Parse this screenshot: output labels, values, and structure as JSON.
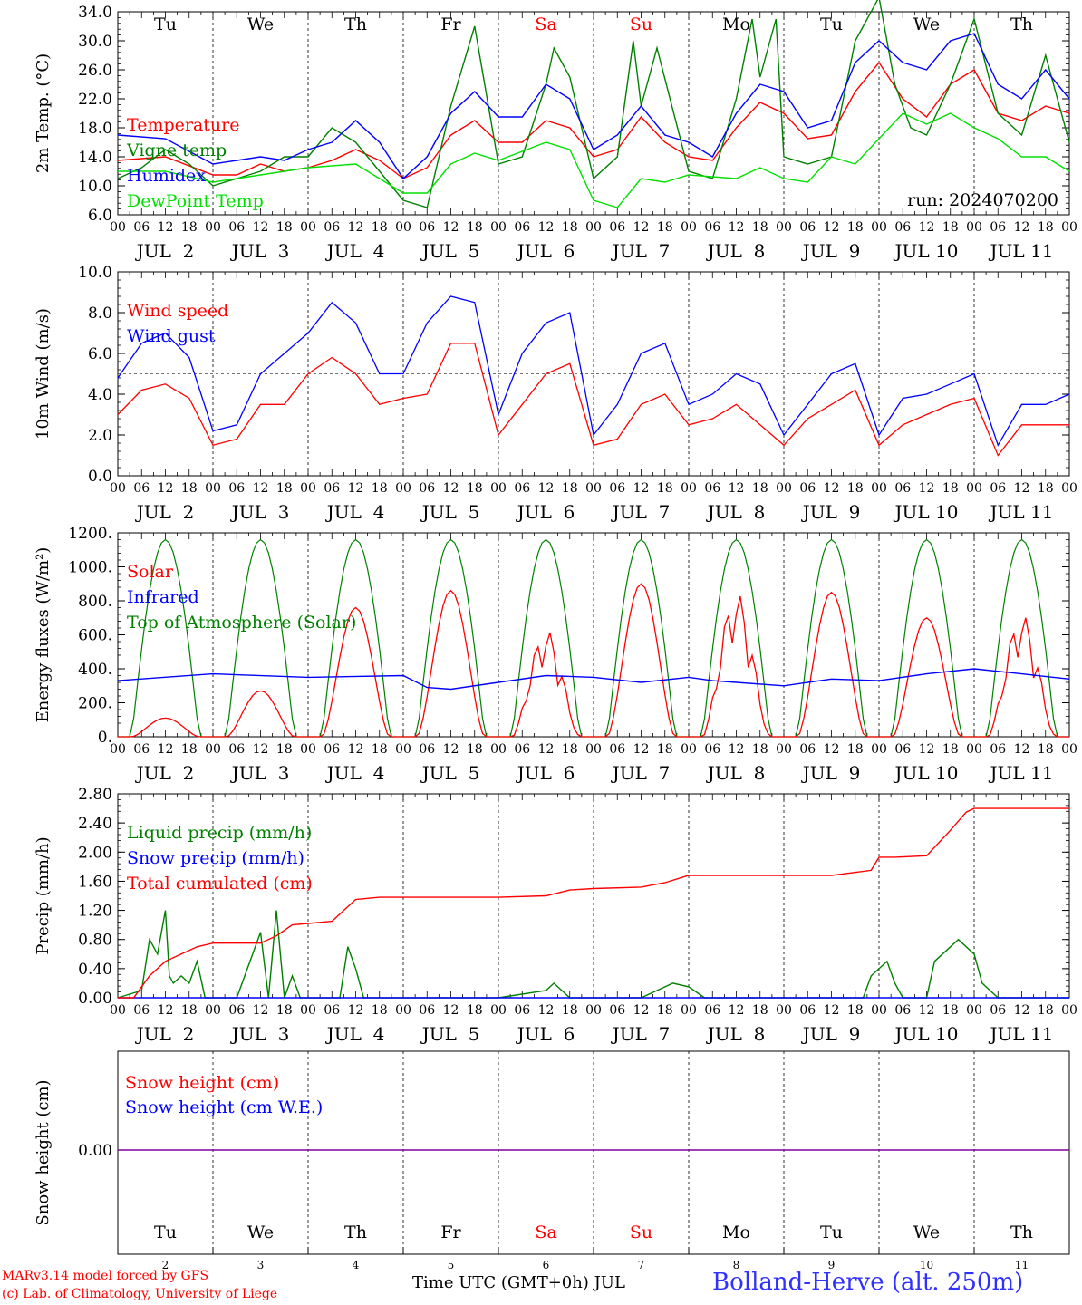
{
  "meta": {
    "run": "run: 2024070200",
    "credit_line1": "MARv3.14 model forced by GFS",
    "credit_line2": "(c) Lab. of Climatology, University of Liege",
    "xaxis_title": "Time UTC (GMT+0h) JUL",
    "station": "Bolland-Herve (alt. 250m)"
  },
  "colors": {
    "red": "#ff0000",
    "blue": "#0000ff",
    "green": "#008000",
    "light_green": "#00e000",
    "purple": "#8000a0"
  },
  "days": {
    "weekday_labels": [
      "Tu",
      "We",
      "Th",
      "Fr",
      "Sa",
      "Su",
      "Mo",
      "Tu",
      "We",
      "Th"
    ],
    "weekend_color": [
      "#000000",
      "#000000",
      "#000000",
      "#000000",
      "#ff0000",
      "#ff0000",
      "#000000",
      "#000000",
      "#000000",
      "#000000"
    ],
    "date_labels": [
      "JUL  2",
      "JUL  3",
      "JUL  4",
      "JUL  5",
      "JUL  6",
      "JUL  7",
      "JUL  8",
      "JUL  9",
      "JUL 10",
      "JUL 11"
    ],
    "day_numbers": [
      "2",
      "3",
      "4",
      "5",
      "6",
      "7",
      "8",
      "9",
      "10",
      "11"
    ],
    "hour_ticks": [
      "00",
      "06",
      "12",
      "18"
    ]
  },
  "chart_data": [
    {
      "type": "line",
      "ylabel": "2m Temp. (°C)",
      "ylim": [
        6,
        34
      ],
      "yticks": [
        "6.0",
        "10.0",
        "14.0",
        "18.0",
        "22.0",
        "26.0",
        "30.0",
        "34.0"
      ],
      "x_unit": "hours since JUL 2 00 UTC",
      "series": [
        {
          "name": "Temperature",
          "color": "#ff0000",
          "x": [
            0,
            12,
            24,
            30,
            36,
            42,
            48,
            54,
            60,
            66,
            72,
            78,
            84,
            90,
            96,
            102,
            108,
            114,
            120,
            126,
            132,
            138,
            144,
            150,
            156,
            162,
            168,
            174,
            180,
            186,
            192,
            198,
            204,
            210,
            216,
            222,
            228,
            234,
            240
          ],
          "values": [
            13.5,
            14,
            11.5,
            11.5,
            13,
            12,
            12.5,
            13.5,
            15,
            13.5,
            11,
            12.5,
            17,
            19,
            16,
            16,
            19,
            18,
            14,
            15,
            19.5,
            16,
            14,
            13.5,
            18,
            21.5,
            20,
            16.5,
            17,
            23,
            27,
            22,
            19.5,
            24,
            26,
            20,
            19,
            21,
            20
          ]
        },
        {
          "name": "Vigne temp",
          "color": "#008000",
          "x": [
            0,
            6,
            12,
            18,
            24,
            30,
            36,
            42,
            48,
            54,
            60,
            66,
            72,
            78,
            84,
            90,
            96,
            102,
            108,
            110,
            114,
            120,
            126,
            130,
            132,
            136,
            144,
            150,
            156,
            160,
            162,
            166,
            168,
            174,
            180,
            186,
            192,
            196,
            200,
            204,
            210,
            216,
            222,
            228,
            234,
            240
          ],
          "values": [
            11,
            12.5,
            15,
            13,
            10,
            11,
            12,
            14,
            14,
            18,
            16,
            12,
            8,
            7,
            21,
            32,
            13,
            14,
            24,
            29,
            25,
            11,
            14,
            30,
            21,
            29,
            12,
            11,
            22,
            33,
            25,
            33,
            14,
            13,
            14,
            30,
            36,
            24,
            18,
            17,
            24,
            33,
            20,
            17,
            28,
            16
          ]
        },
        {
          "name": "Humidex",
          "color": "#0000ff",
          "x": [
            0,
            12,
            24,
            30,
            36,
            42,
            48,
            54,
            60,
            66,
            72,
            78,
            84,
            90,
            96,
            102,
            108,
            114,
            120,
            126,
            132,
            138,
            144,
            150,
            156,
            162,
            168,
            174,
            180,
            186,
            192,
            198,
            204,
            210,
            216,
            222,
            228,
            234,
            240
          ],
          "values": [
            17,
            16.5,
            13,
            13.5,
            14,
            13.5,
            15,
            16,
            19,
            16,
            11,
            14,
            20,
            23,
            19.5,
            19.5,
            24,
            22,
            15,
            17,
            21,
            17,
            16,
            14,
            20,
            24,
            23,
            18,
            19,
            27,
            30,
            27,
            26,
            30,
            31,
            24,
            22,
            26,
            22
          ]
        },
        {
          "name": "DewPoint Temp",
          "color": "#00e000",
          "x": [
            0,
            12,
            24,
            36,
            48,
            60,
            66,
            72,
            78,
            84,
            90,
            96,
            108,
            114,
            120,
            126,
            132,
            138,
            144,
            156,
            162,
            168,
            174,
            180,
            186,
            192,
            198,
            204,
            210,
            216,
            222,
            228,
            234,
            240
          ],
          "values": [
            12,
            12,
            10.5,
            11.5,
            12.5,
            13,
            11,
            9,
            9,
            13,
            14.5,
            13.5,
            16,
            15,
            8,
            7,
            11,
            10.5,
            11.5,
            11,
            12.5,
            11,
            10.5,
            14,
            13,
            16.5,
            20,
            18.5,
            20,
            18,
            16.5,
            14,
            14,
            12
          ]
        }
      ]
    },
    {
      "type": "line",
      "ylabel": "10m Wind (m/s)",
      "ylim": [
        0,
        10
      ],
      "yticks": [
        "0.0",
        "2.0",
        "4.0",
        "6.0",
        "8.0",
        "10.0"
      ],
      "reference_line": 5,
      "series": [
        {
          "name": "Wind speed",
          "color": "#ff0000",
          "x": [
            0,
            6,
            12,
            18,
            24,
            30,
            36,
            42,
            48,
            54,
            60,
            66,
            72,
            78,
            84,
            90,
            96,
            102,
            108,
            114,
            120,
            126,
            132,
            138,
            144,
            150,
            156,
            162,
            168,
            174,
            180,
            186,
            192,
            198,
            204,
            210,
            216,
            222,
            228,
            234,
            240
          ],
          "values": [
            3,
            4.2,
            4.5,
            3.8,
            1.5,
            1.8,
            3.5,
            3.5,
            5,
            5.8,
            5,
            3.5,
            3.8,
            4,
            6.5,
            6.5,
            2,
            3.5,
            5,
            5.5,
            1.5,
            1.8,
            3.5,
            4,
            2.5,
            2.8,
            3.5,
            2.5,
            1.5,
            2.8,
            3.5,
            4.2,
            1.5,
            2.5,
            3,
            3.5,
            3.8,
            1,
            2.5,
            2.5,
            2.5
          ]
        },
        {
          "name": "Wind gust",
          "color": "#0000ff",
          "x": [
            0,
            6,
            12,
            18,
            24,
            30,
            36,
            42,
            48,
            54,
            60,
            66,
            72,
            78,
            84,
            90,
            96,
            102,
            108,
            114,
            120,
            126,
            132,
            138,
            144,
            150,
            156,
            162,
            168,
            174,
            180,
            186,
            192,
            198,
            204,
            210,
            216,
            222,
            228,
            234,
            240
          ],
          "values": [
            4.8,
            6.5,
            7,
            5.8,
            2.2,
            2.5,
            5,
            6,
            7,
            8.5,
            7.5,
            5,
            5,
            7.5,
            8.8,
            8.5,
            3,
            6,
            7.5,
            8,
            2,
            3.5,
            6,
            6.5,
            3.5,
            4,
            5,
            4.5,
            2,
            3.5,
            5,
            5.5,
            2,
            3.8,
            4,
            4.5,
            5,
            1.5,
            3.5,
            3.5,
            4
          ]
        }
      ]
    },
    {
      "type": "line",
      "ylabel": "Energy fluxes (W/m²)",
      "ylim": [
        0,
        1200
      ],
      "yticks": [
        "0.",
        "200.",
        "400.",
        "600.",
        "800.",
        "1000.",
        "1200."
      ],
      "series": [
        {
          "name": "Solar",
          "color": "#ff0000",
          "peaks": [
            110,
            270,
            760,
            860,
            630,
            900,
            850,
            850,
            700,
            720
          ]
        },
        {
          "name": "Infrared",
          "color": "#0000ff",
          "x": [
            0,
            24,
            48,
            72,
            78,
            84,
            96,
            108,
            120,
            132,
            144,
            150,
            156,
            168,
            180,
            192,
            204,
            216,
            228,
            240
          ],
          "values": [
            330,
            370,
            350,
            360,
            290,
            280,
            320,
            360,
            350,
            320,
            350,
            330,
            320,
            300,
            340,
            330,
            370,
            400,
            370,
            340
          ]
        },
        {
          "name": "Top of Atmosphere (Solar)",
          "color": "#008000",
          "daily_peak": 1160,
          "sunrise_hour": 3.5,
          "sunset_hour": 20.5
        }
      ]
    },
    {
      "type": "line",
      "ylabel": "Precip (mm/h)",
      "ylim": [
        0,
        2.8
      ],
      "yticks": [
        "0.00",
        "0.40",
        "0.80",
        "1.20",
        "1.60",
        "2.00",
        "2.40",
        "2.80"
      ],
      "series": [
        {
          "name": "Liquid precip (mm/h)",
          "color": "#008000",
          "x": [
            0,
            6,
            8,
            10,
            12,
            13,
            14,
            16,
            18,
            20,
            22,
            24,
            30,
            36,
            38,
            40,
            42,
            44,
            46,
            48,
            56,
            58,
            60,
            62,
            64,
            68,
            72,
            96,
            108,
            110,
            112,
            114,
            120,
            132,
            136,
            140,
            144,
            148,
            150,
            160,
            170,
            180,
            188,
            190,
            194,
            196,
            198,
            204,
            206,
            210,
            212,
            216,
            218,
            222,
            228,
            240
          ],
          "values": [
            0,
            0.1,
            0.8,
            0.6,
            1.2,
            0.3,
            0.2,
            0.3,
            0.2,
            0.5,
            0,
            0,
            0,
            0.9,
            0,
            1.2,
            0,
            0.3,
            0,
            0,
            0,
            0.7,
            0.4,
            0,
            0,
            0,
            0,
            0,
            0.1,
            0.2,
            0.1,
            0,
            0,
            0,
            0.1,
            0.2,
            0.15,
            0,
            0,
            0,
            0,
            0,
            0,
            0.3,
            0.5,
            0.2,
            0,
            0,
            0.5,
            0.7,
            0.8,
            0.6,
            0.2,
            0,
            0,
            0
          ]
        },
        {
          "name": "Snow precip (mm/h)",
          "color": "#0000ff",
          "x": [
            0,
            240
          ],
          "values": [
            0,
            0
          ]
        },
        {
          "name": "Total cumulated (cm)",
          "color": "#ff0000",
          "x": [
            0,
            4,
            8,
            12,
            16,
            20,
            24,
            36,
            40,
            44,
            48,
            54,
            60,
            66,
            72,
            90,
            96,
            108,
            114,
            120,
            132,
            138,
            144,
            150,
            156,
            168,
            180,
            190,
            192,
            196,
            204,
            210,
            214,
            216,
            240
          ],
          "values": [
            0,
            0,
            0.3,
            0.5,
            0.6,
            0.7,
            0.75,
            0.75,
            0.85,
            1.0,
            1.02,
            1.05,
            1.35,
            1.38,
            1.38,
            1.38,
            1.38,
            1.4,
            1.48,
            1.5,
            1.52,
            1.58,
            1.68,
            1.68,
            1.68,
            1.68,
            1.68,
            1.75,
            1.93,
            1.93,
            1.95,
            2.3,
            2.55,
            2.6,
            2.6
          ]
        }
      ]
    },
    {
      "type": "line",
      "ylabel": "Snow height (cm)",
      "yticks": [
        "0.00"
      ],
      "series": [
        {
          "name": "Snow height (cm)",
          "color": "#ff0000",
          "x": [
            0,
            240
          ],
          "values": [
            0,
            0
          ]
        },
        {
          "name": "Snow height (cm W.E.)",
          "color": "#0000ff",
          "x": [
            0,
            240
          ],
          "values": [
            0,
            0
          ]
        }
      ]
    }
  ]
}
